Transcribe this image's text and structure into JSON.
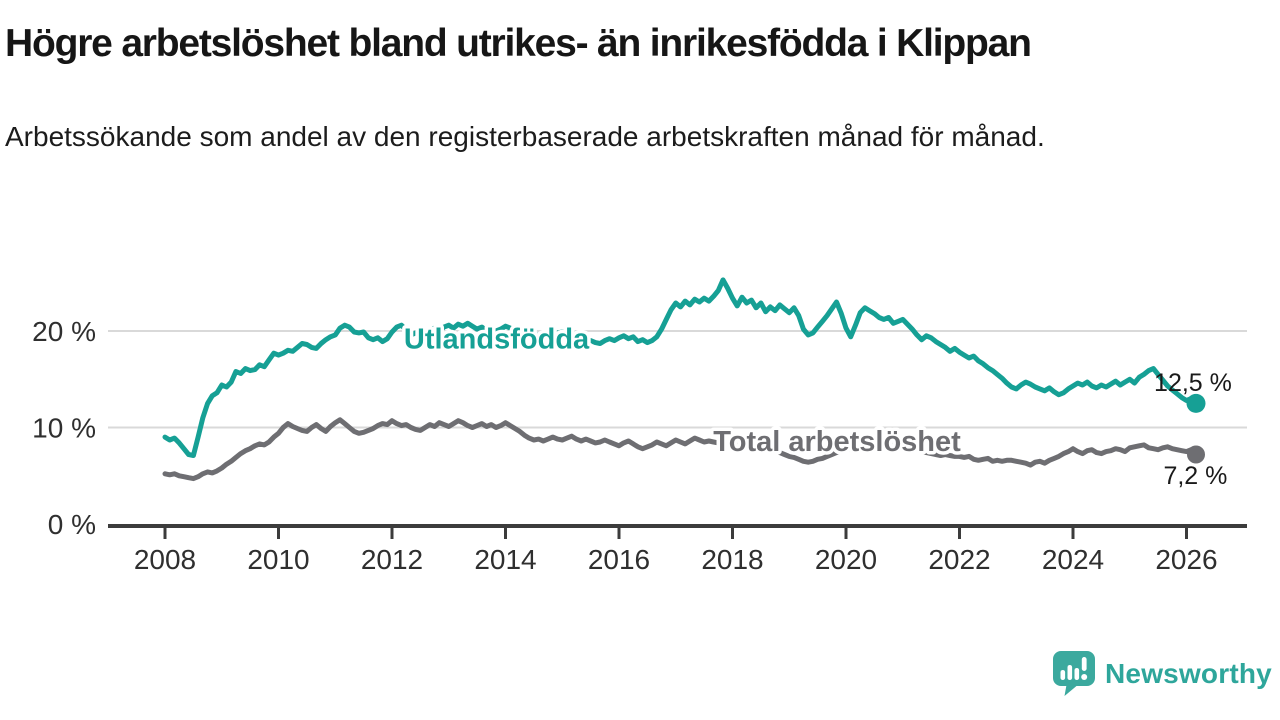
{
  "header": {
    "title": "Högre arbetslöshet bland utrikes- än inrikesfödda i Klippan",
    "subtitle": "Arbetssökande som andel av den registerbaserade arbetskraften månad för månad."
  },
  "branding": {
    "logo_text": "Newsworthy",
    "logo_text_color": "#2EA69B",
    "logo_icon_color": "#3BA99E"
  },
  "chart_data": {
    "type": "line",
    "title": "Högre arbetslöshet bland utrikes- än inrikesfödda i Klippan",
    "subtitle": "Arbetssökande som andel av den registerbaserade arbetskraften månad för månad.",
    "unit": "percent",
    "frequency": "monthly",
    "start_year": 2008,
    "start_month": 1,
    "xlim": [
      2007.0,
      2027.05
    ],
    "ylim": [
      0,
      27.5
    ],
    "grid": "horizontal",
    "gridline_color": "#D9D9D9",
    "axis_color": "#3C3C3C",
    "x_ticks": [
      2008,
      2010,
      2012,
      2014,
      2016,
      2018,
      2020,
      2022,
      2024,
      2026
    ],
    "y_ticks": [
      {
        "value": 0,
        "label": "0 %"
      },
      {
        "value": 10,
        "label": "10 %"
      },
      {
        "value": 20,
        "label": "20 %"
      }
    ],
    "series": [
      {
        "id": "utlandsfodda",
        "name": "Utlandsfödda",
        "color": "#16A095",
        "label_at": [
          2012.21,
          18.2
        ],
        "end_label": "12,5 %",
        "end_value": 12.5,
        "end_label_at": [
          2026.8,
          13.8
        ],
        "dot_radius": 9.5,
        "values": [
          9.0,
          8.7,
          8.9,
          8.4,
          7.8,
          7.2,
          7.1,
          9.0,
          11.0,
          12.5,
          13.3,
          13.6,
          14.4,
          14.2,
          14.7,
          15.8,
          15.6,
          16.1,
          15.9,
          16.0,
          16.5,
          16.3,
          17.0,
          17.7,
          17.5,
          17.7,
          18.0,
          17.9,
          18.3,
          18.7,
          18.6,
          18.3,
          18.2,
          18.7,
          19.1,
          19.4,
          19.6,
          20.3,
          20.6,
          20.4,
          19.9,
          19.8,
          19.9,
          19.3,
          19.1,
          19.3,
          18.9,
          19.2,
          19.9,
          20.4,
          20.6,
          20.1,
          19.6,
          19.8,
          20.0,
          19.7,
          20.1,
          20.3,
          20.0,
          20.4,
          20.6,
          20.3,
          20.7,
          20.5,
          20.8,
          20.5,
          20.2,
          20.4,
          20.0,
          19.7,
          20.0,
          20.2,
          20.5,
          20.3,
          19.9,
          20.1,
          19.7,
          19.5,
          19.4,
          19.6,
          19.2,
          19.4,
          19.6,
          19.8,
          19.9,
          19.7,
          19.9,
          19.5,
          19.3,
          19.1,
          19.0,
          18.8,
          18.7,
          19.0,
          19.2,
          19.0,
          19.3,
          19.5,
          19.2,
          19.4,
          18.9,
          19.1,
          18.8,
          19.0,
          19.4,
          20.2,
          21.2,
          22.2,
          22.9,
          22.5,
          23.1,
          22.7,
          23.3,
          23.0,
          23.4,
          23.1,
          23.6,
          24.2,
          25.3,
          24.4,
          23.4,
          22.6,
          23.5,
          22.9,
          23.2,
          22.4,
          22.9,
          22.0,
          22.5,
          22.1,
          22.7,
          22.3,
          21.9,
          22.4,
          21.6,
          20.2,
          19.6,
          19.8,
          20.4,
          21.0,
          21.6,
          22.3,
          23.0,
          21.8,
          20.3,
          19.4,
          20.6,
          21.9,
          22.4,
          22.1,
          21.8,
          21.4,
          21.2,
          21.4,
          20.8,
          21.0,
          21.2,
          20.7,
          20.2,
          19.6,
          19.1,
          19.5,
          19.3,
          18.9,
          18.6,
          18.3,
          17.9,
          18.2,
          17.8,
          17.5,
          17.2,
          17.4,
          16.9,
          16.6,
          16.2,
          15.9,
          15.5,
          15.1,
          14.6,
          14.2,
          14.0,
          14.4,
          14.7,
          14.5,
          14.2,
          14.0,
          13.8,
          14.1,
          13.7,
          13.4,
          13.6,
          14.0,
          14.3,
          14.6,
          14.4,
          14.7,
          14.3,
          14.1,
          14.4,
          14.2,
          14.5,
          14.8,
          14.4,
          14.7,
          15.0,
          14.6,
          15.2,
          15.5,
          15.9,
          16.1,
          15.5,
          14.9,
          14.3,
          13.9,
          13.5,
          13.1,
          12.8,
          13.0,
          12.5
        ]
      },
      {
        "id": "total-arbetsloshet",
        "name": "Total arbetslöshet",
        "color": "#6E6E72",
        "label_at": [
          2017.66,
          7.55
        ],
        "end_label": "7,2 %",
        "end_value": 7.2,
        "end_label_at": [
          2026.72,
          4.15
        ],
        "dot_radius": 9,
        "values": [
          5.2,
          5.1,
          5.2,
          5.0,
          4.9,
          4.8,
          4.7,
          4.9,
          5.2,
          5.4,
          5.3,
          5.5,
          5.8,
          6.2,
          6.5,
          6.9,
          7.3,
          7.6,
          7.8,
          8.1,
          8.3,
          8.2,
          8.5,
          9.0,
          9.4,
          10.0,
          10.4,
          10.1,
          9.9,
          9.7,
          9.6,
          10.0,
          10.3,
          9.9,
          9.6,
          10.1,
          10.5,
          10.8,
          10.4,
          10.0,
          9.6,
          9.4,
          9.5,
          9.7,
          9.9,
          10.2,
          10.4,
          10.3,
          10.7,
          10.4,
          10.2,
          10.3,
          10.0,
          9.8,
          9.7,
          10.0,
          10.3,
          10.1,
          10.5,
          10.3,
          10.1,
          10.4,
          10.7,
          10.5,
          10.2,
          10.0,
          10.2,
          10.4,
          10.1,
          10.3,
          10.0,
          10.2,
          10.5,
          10.2,
          9.9,
          9.6,
          9.2,
          8.9,
          8.7,
          8.8,
          8.6,
          8.8,
          9.0,
          8.8,
          8.7,
          8.9,
          9.1,
          8.8,
          8.6,
          8.8,
          8.6,
          8.4,
          8.5,
          8.7,
          8.5,
          8.3,
          8.1,
          8.4,
          8.6,
          8.3,
          8.0,
          7.8,
          8.0,
          8.2,
          8.5,
          8.3,
          8.1,
          8.4,
          8.7,
          8.5,
          8.3,
          8.6,
          8.9,
          8.7,
          8.5,
          8.6,
          8.5,
          8.4,
          8.2,
          8.3,
          8.1,
          8.2,
          8.0,
          7.9,
          7.8,
          7.9,
          7.7,
          7.6,
          7.5,
          7.6,
          7.4,
          7.2,
          7.0,
          6.9,
          6.7,
          6.5,
          6.4,
          6.5,
          6.7,
          6.8,
          7.0,
          7.2,
          7.4,
          7.6,
          7.8,
          7.7,
          8.0,
          8.4,
          8.7,
          8.8,
          8.8,
          8.7,
          8.5,
          8.4,
          8.3,
          8.2,
          8.1,
          8.0,
          7.8,
          7.7,
          7.5,
          7.4,
          7.3,
          7.2,
          7.1,
          7.2,
          7.1,
          7.0,
          7.0,
          6.9,
          7.0,
          6.7,
          6.6,
          6.7,
          6.8,
          6.5,
          6.6,
          6.5,
          6.6,
          6.6,
          6.5,
          6.4,
          6.3,
          6.1,
          6.4,
          6.5,
          6.3,
          6.6,
          6.8,
          7.0,
          7.3,
          7.5,
          7.8,
          7.5,
          7.3,
          7.6,
          7.7,
          7.4,
          7.3,
          7.5,
          7.6,
          7.8,
          7.7,
          7.5,
          7.9,
          8.0,
          8.1,
          8.2,
          7.9,
          7.8,
          7.7,
          7.9,
          8.0,
          7.8,
          7.7,
          7.6,
          7.5,
          7.7,
          7.2
        ]
      }
    ]
  }
}
